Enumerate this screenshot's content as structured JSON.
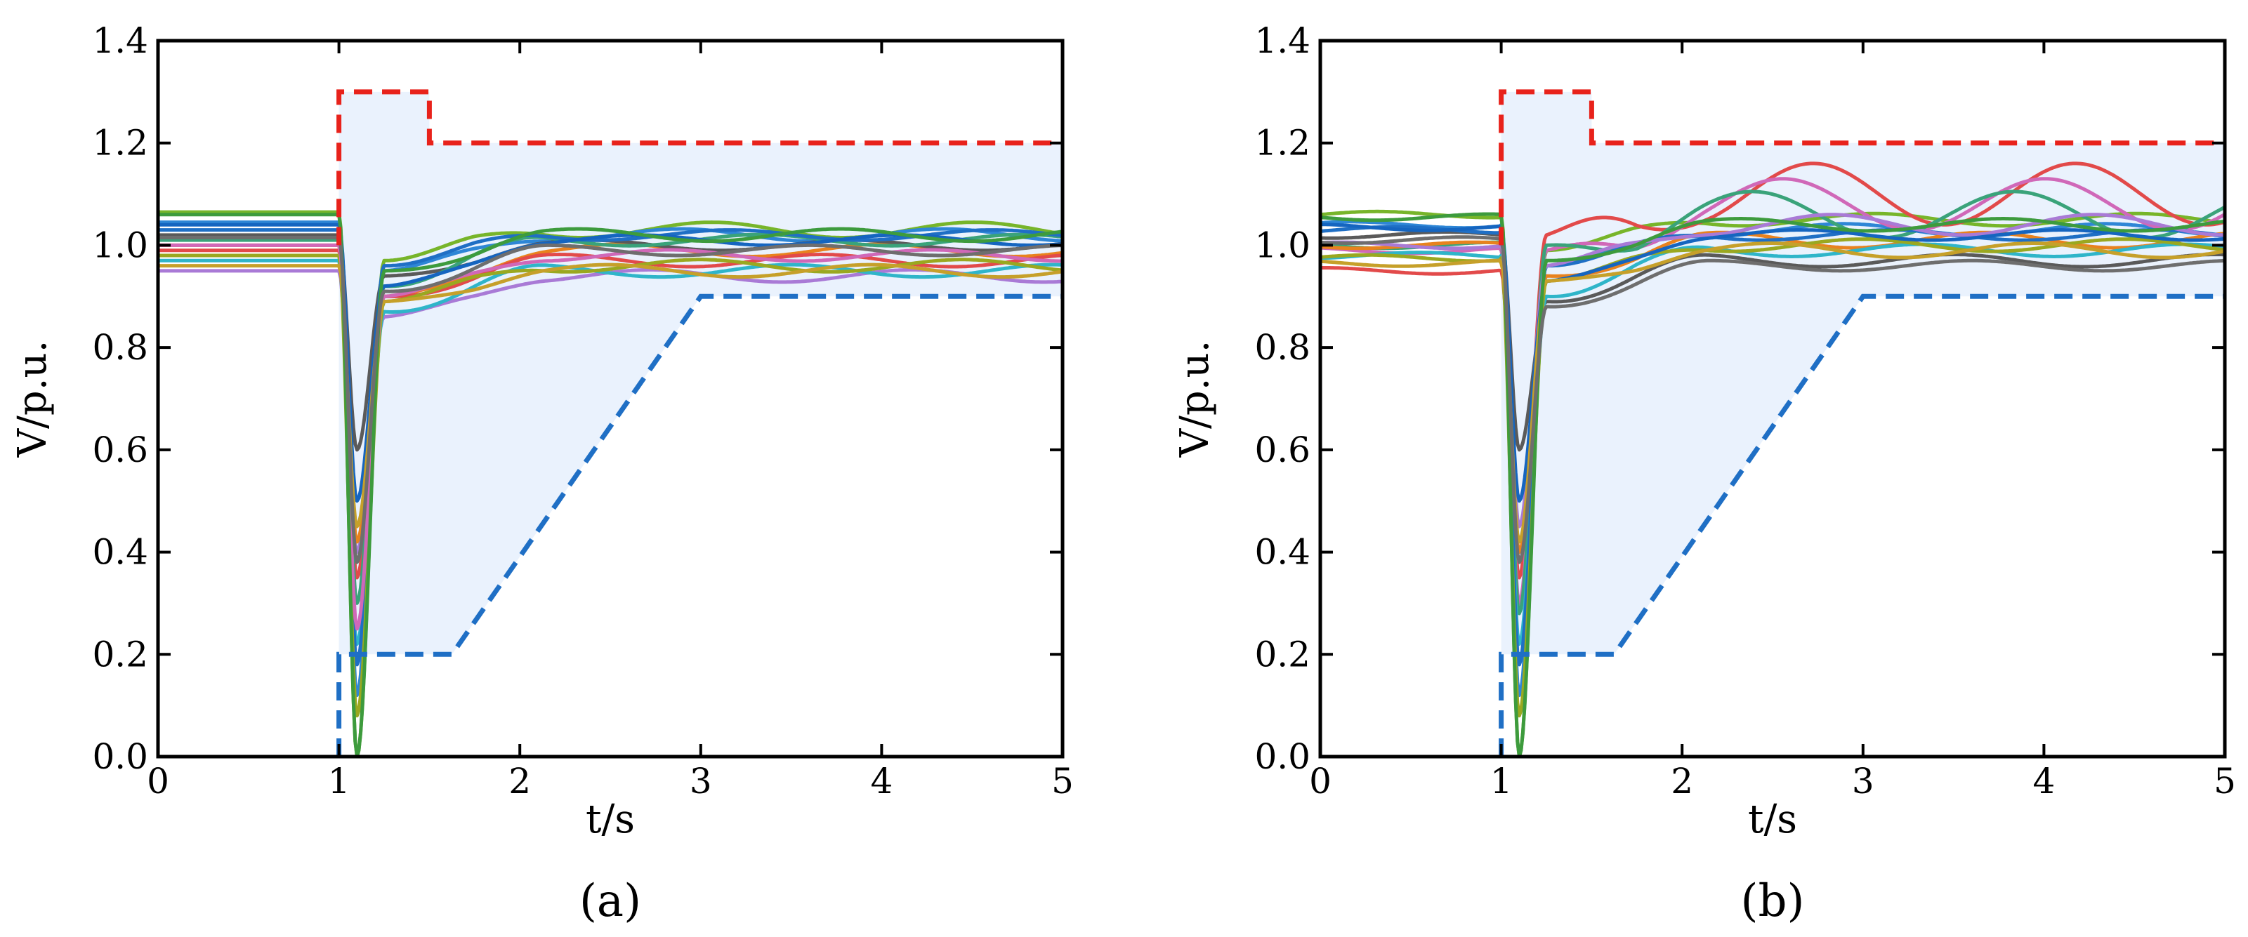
{
  "chart_data": [
    {
      "type": "line",
      "panel_label": "(a)",
      "xlabel": "t/s",
      "ylabel": "V/p.u.",
      "xlim": [
        0,
        5
      ],
      "ylim": [
        0,
        1.4
      ],
      "x_ticks": [
        "0",
        "1",
        "2",
        "3",
        "4",
        "5"
      ],
      "y_ticks": [
        "0.0",
        "0.2",
        "0.4",
        "0.6",
        "0.8",
        "1.0",
        "1.2",
        "1.4"
      ],
      "limit_series": [
        {
          "name": "upper-limit",
          "style": "dashed",
          "color": "#e8221b",
          "x": [
            1.0,
            1.0,
            1.5,
            1.5,
            5.0
          ],
          "y": [
            1.0,
            1.3,
            1.3,
            1.2,
            1.2
          ]
        },
        {
          "name": "lower-limit",
          "style": "dashed",
          "color": "#1f6fc5",
          "x": [
            1.0,
            1.0,
            1.15,
            1.15,
            1.625,
            3.0,
            5.0
          ],
          "y": [
            0.0,
            0.2,
            0.2,
            0.2,
            0.2,
            0.9,
            0.9
          ]
        }
      ],
      "series": [
        {
          "name": "bus-1",
          "color": "#77b52a",
          "init": 1.065,
          "dip": 0.0,
          "settle": 1.03,
          "osc": 0.015
        },
        {
          "name": "bus-2",
          "color": "#2e86d6",
          "init": 1.045,
          "dip": 0.12,
          "settle": 1.02,
          "osc": 0.012
        },
        {
          "name": "bus-3",
          "color": "#a97ad6",
          "init": 0.95,
          "dip": 0.4,
          "settle": 0.94,
          "osc": 0.012
        },
        {
          "name": "bus-4",
          "color": "#e8821e",
          "init": 1.0,
          "dip": 0.42,
          "settle": 0.99,
          "osc": 0.012
        },
        {
          "name": "bus-5",
          "color": "#5a5a5a",
          "init": 1.02,
          "dip": 0.6,
          "settle": 1.0,
          "osc": 0.01
        },
        {
          "name": "bus-6",
          "color": "#e24a4a",
          "init": 0.99,
          "dip": 0.35,
          "settle": 0.97,
          "osc": 0.012
        },
        {
          "name": "bus-7",
          "color": "#2fb5c9",
          "init": 0.97,
          "dip": 0.22,
          "settle": 0.95,
          "osc": 0.012
        },
        {
          "name": "bus-8",
          "color": "#3aa37a",
          "init": 1.01,
          "dip": 0.3,
          "settle": 1.01,
          "osc": 0.011
        },
        {
          "name": "bus-9",
          "color": "#1f6fc5",
          "init": 1.03,
          "dip": 0.18,
          "settle": 1.02,
          "osc": 0.01
        },
        {
          "name": "bus-10",
          "color": "#9aa820",
          "init": 0.98,
          "dip": 0.08,
          "settle": 0.96,
          "osc": 0.012
        },
        {
          "name": "bus-11",
          "color": "#d068b8",
          "init": 1.0,
          "dip": 0.25,
          "settle": 0.98,
          "osc": 0.011
        },
        {
          "name": "bus-12",
          "color": "#1565c0",
          "init": 1.04,
          "dip": 0.5,
          "settle": 1.01,
          "osc": 0.01
        },
        {
          "name": "bus-13",
          "color": "#c6a02a",
          "init": 0.96,
          "dip": 0.45,
          "settle": 0.95,
          "osc": 0.012
        },
        {
          "name": "bus-14",
          "color": "#3d9b3d",
          "init": 1.06,
          "dip": 0.0,
          "settle": 1.02,
          "osc": 0.012
        },
        {
          "name": "bus-15",
          "color": "#6e6e6e",
          "init": 1.015,
          "dip": 0.38,
          "settle": 0.99,
          "osc": 0.01
        }
      ]
    },
    {
      "type": "line",
      "panel_label": "(b)",
      "xlabel": "t/s",
      "ylabel": "V/p.u.",
      "xlim": [
        0,
        5
      ],
      "ylim": [
        0,
        1.4
      ],
      "x_ticks": [
        "0",
        "1",
        "2",
        "3",
        "4",
        "5"
      ],
      "y_ticks": [
        "0.0",
        "0.2",
        "0.4",
        "0.6",
        "0.8",
        "1.0",
        "1.2",
        "1.4"
      ],
      "limit_series": [
        {
          "name": "upper-limit",
          "style": "dashed",
          "color": "#e8221b",
          "x": [
            1.0,
            1.0,
            1.5,
            1.5,
            5.0
          ],
          "y": [
            1.0,
            1.3,
            1.3,
            1.2,
            1.2
          ]
        },
        {
          "name": "lower-limit",
          "style": "dashed",
          "color": "#1f6fc5",
          "x": [
            1.0,
            1.0,
            1.12,
            1.12,
            1.625,
            3.0,
            5.0
          ],
          "y": [
            0.0,
            0.2,
            0.2,
            0.2,
            0.2,
            0.9,
            0.9
          ]
        }
      ],
      "series": [
        {
          "name": "bus-1",
          "color": "#77b52a",
          "init": 1.06,
          "dip": 0.0,
          "settle": 1.05,
          "osc": 0.012
        },
        {
          "name": "bus-2",
          "color": "#2e86d6",
          "init": 1.04,
          "dip": 0.12,
          "settle": 1.03,
          "osc": 0.012
        },
        {
          "name": "bus-3",
          "color": "#e24a4a",
          "init": 0.95,
          "dip": 0.35,
          "settle": 1.1,
          "osc": 0.06
        },
        {
          "name": "bus-4",
          "color": "#d068b8",
          "init": 0.99,
          "dip": 0.3,
          "settle": 1.08,
          "osc": 0.05
        },
        {
          "name": "bus-5",
          "color": "#3aa37a",
          "init": 1.0,
          "dip": 0.28,
          "settle": 1.06,
          "osc": 0.045
        },
        {
          "name": "bus-6",
          "color": "#e8821e",
          "init": 1.0,
          "dip": 0.4,
          "settle": 1.01,
          "osc": 0.015
        },
        {
          "name": "bus-7",
          "color": "#5a5a5a",
          "init": 1.02,
          "dip": 0.6,
          "settle": 0.97,
          "osc": 0.012
        },
        {
          "name": "bus-8",
          "color": "#2fb5c9",
          "init": 0.98,
          "dip": 0.22,
          "settle": 0.99,
          "osc": 0.012
        },
        {
          "name": "bus-9",
          "color": "#1f6fc5",
          "init": 1.03,
          "dip": 0.18,
          "settle": 1.02,
          "osc": 0.01
        },
        {
          "name": "bus-10",
          "color": "#9aa820",
          "init": 0.975,
          "dip": 0.08,
          "settle": 1.0,
          "osc": 0.012
        },
        {
          "name": "bus-11",
          "color": "#a97ad6",
          "init": 1.0,
          "dip": 0.45,
          "settle": 1.04,
          "osc": 0.02
        },
        {
          "name": "bus-12",
          "color": "#1565c0",
          "init": 1.035,
          "dip": 0.5,
          "settle": 1.02,
          "osc": 0.01
        },
        {
          "name": "bus-13",
          "color": "#c6a02a",
          "init": 0.965,
          "dip": 0.42,
          "settle": 0.99,
          "osc": 0.014
        },
        {
          "name": "bus-14",
          "color": "#3d9b3d",
          "init": 1.055,
          "dip": 0.0,
          "settle": 1.04,
          "osc": 0.012
        },
        {
          "name": "bus-15",
          "color": "#6e6e6e",
          "init": 1.01,
          "dip": 0.38,
          "settle": 0.96,
          "osc": 0.01
        }
      ]
    }
  ]
}
